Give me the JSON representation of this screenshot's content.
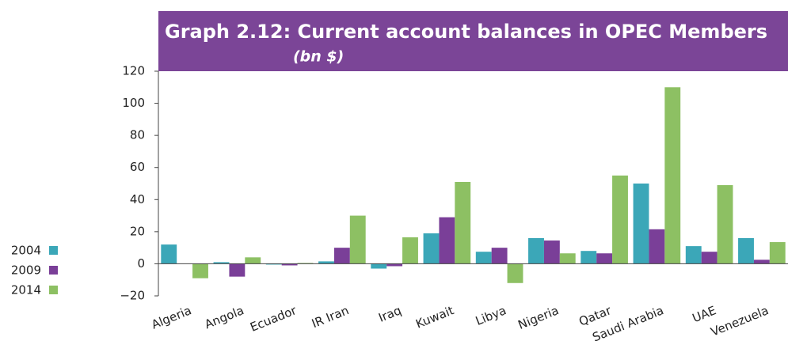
{
  "chart_data": {
    "type": "bar",
    "title": "Graph 2.12:  Current account balances in OPEC Members",
    "subtitle": "(bn $)",
    "categories": [
      "Algeria",
      "Angola",
      "Ecuador",
      "IR Iran",
      "Iraq",
      "Kuwait",
      "Libya",
      "Nigeria",
      "Qatar",
      "Saudi Arabia",
      "UAE",
      "Venezuela"
    ],
    "series": [
      {
        "name": "2004",
        "color": "#3ba7b8",
        "values": [
          12,
          1,
          -0.5,
          1.5,
          -3,
          19,
          7.5,
          16,
          8,
          50,
          11,
          16
        ]
      },
      {
        "name": "2009",
        "color": "#7a3f98",
        "values": [
          0,
          -8,
          -1,
          10,
          -1.5,
          29,
          10,
          14.5,
          6.5,
          21.5,
          7.5,
          2.5
        ]
      },
      {
        "name": "2014",
        "color": "#8dc063",
        "values": [
          -9,
          4,
          0.5,
          30,
          16.5,
          51,
          -12,
          6.5,
          55,
          110,
          49,
          13.5
        ]
      }
    ],
    "ylim": [
      -20,
      120
    ],
    "yticks": [
      {
        "value": -20,
        "label": "−20"
      },
      0,
      20,
      40,
      60,
      80,
      100,
      120
    ],
    "legend": "bottom-left"
  }
}
